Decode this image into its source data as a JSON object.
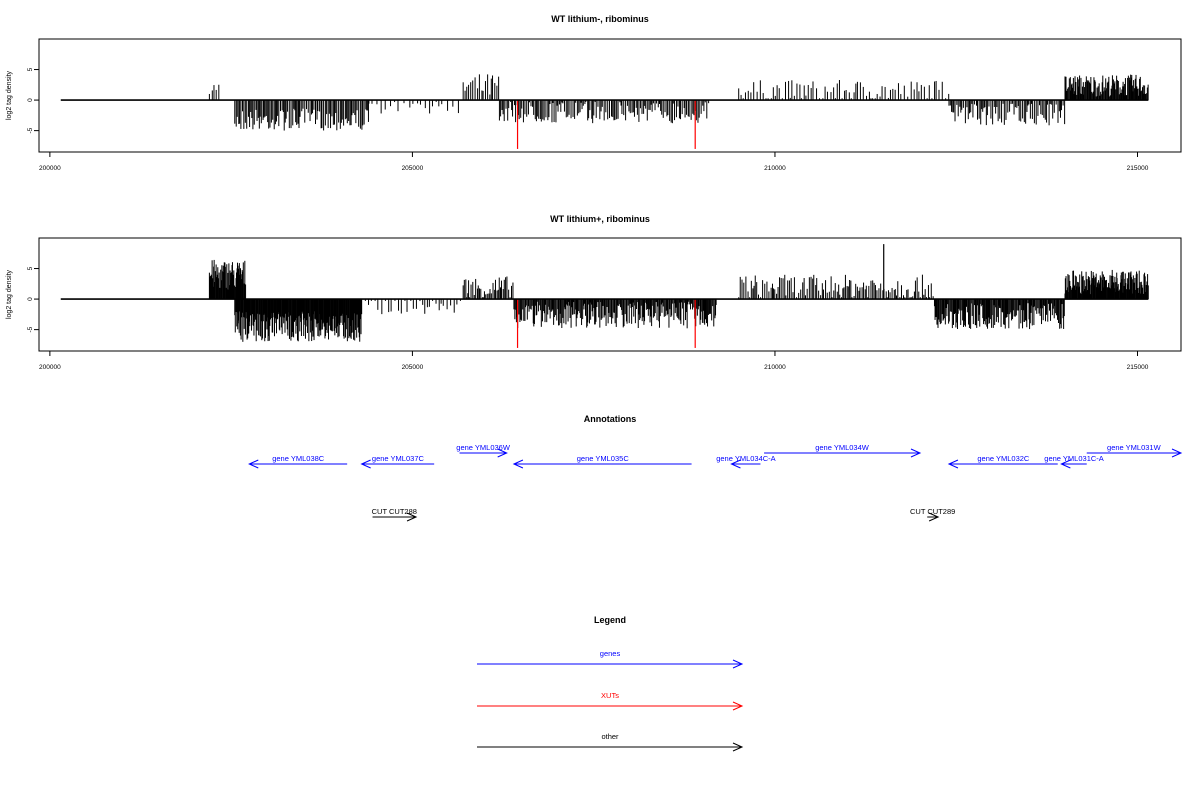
{
  "chart_data": [
    {
      "type": "bar",
      "title": "WT lithium-, ribominus",
      "ylabel": "log2 tag density",
      "xlim": [
        199850,
        215600
      ],
      "ylim": [
        -8.5,
        10
      ],
      "x_ticks": [
        200000,
        205000,
        210000,
        215000
      ],
      "y_ticks": [
        -5,
        0,
        5
      ],
      "baseline_range": [
        200150,
        215150
      ],
      "regions": [
        {
          "from": 202200,
          "to": 202350,
          "sign": 1,
          "mean": 2.0,
          "amp": 1.0,
          "step": 30
        },
        {
          "from": 202550,
          "to": 204400,
          "sign": -1,
          "mean": 3.2,
          "amp": 1.8,
          "step": 18
        },
        {
          "from": 204400,
          "to": 205700,
          "sign": -1,
          "mean": 1.2,
          "amp": 1.0,
          "step": 60
        },
        {
          "from": 205700,
          "to": 206200,
          "sign": 1,
          "mean": 2.2,
          "amp": 2.2,
          "step": 25
        },
        {
          "from": 206200,
          "to": 209100,
          "sign": -1,
          "mean": 2.0,
          "amp": 1.8,
          "step": 20
        },
        {
          "from": 209500,
          "to": 212400,
          "sign": 1,
          "mean": 1.5,
          "amp": 1.8,
          "step": 35
        },
        {
          "from": 212400,
          "to": 214000,
          "sign": -1,
          "mean": 2.4,
          "amp": 1.8,
          "step": 20
        },
        {
          "from": 214000,
          "to": 215150,
          "sign": 1,
          "mean": 2.4,
          "amp": 1.8,
          "step": 10
        }
      ],
      "highlight_bars": [
        {
          "x": 206450,
          "y": -8,
          "color": "#ff0000"
        },
        {
          "x": 208900,
          "y": -8,
          "color": "#ff0000"
        }
      ]
    },
    {
      "type": "bar",
      "title": "WT lithium+, ribominus",
      "ylabel": "log2 tag density",
      "xlim": [
        199850,
        215600
      ],
      "ylim": [
        -8.5,
        10
      ],
      "x_ticks": [
        200000,
        205000,
        210000,
        215000
      ],
      "y_ticks": [
        -5,
        0,
        5
      ],
      "baseline_range": [
        200150,
        215150
      ],
      "regions": [
        {
          "from": 202200,
          "to": 202700,
          "sign": 1,
          "mean": 4.0,
          "amp": 2.5,
          "step": 8
        },
        {
          "from": 202550,
          "to": 204300,
          "sign": -1,
          "mean": 4.5,
          "amp": 2.5,
          "step": 8
        },
        {
          "from": 204300,
          "to": 205700,
          "sign": -1,
          "mean": 1.2,
          "amp": 1.3,
          "step": 40
        },
        {
          "from": 205700,
          "to": 206400,
          "sign": 1,
          "mean": 1.8,
          "amp": 2.0,
          "step": 18
        },
        {
          "from": 206400,
          "to": 209200,
          "sign": -1,
          "mean": 2.6,
          "amp": 2.2,
          "step": 12
        },
        {
          "from": 209500,
          "to": 212200,
          "sign": 1,
          "mean": 2.0,
          "amp": 2.0,
          "step": 22
        },
        {
          "from": 212200,
          "to": 214000,
          "sign": -1,
          "mean": 2.8,
          "amp": 2.2,
          "step": 12
        },
        {
          "from": 214000,
          "to": 215150,
          "sign": 1,
          "mean": 2.8,
          "amp": 2.0,
          "step": 8
        }
      ],
      "highlight_bars": [
        {
          "x": 211500,
          "y": 9,
          "color": "#000000"
        },
        {
          "x": 206450,
          "y": -8,
          "color": "#ff0000"
        },
        {
          "x": 208900,
          "y": -8,
          "color": "#ff0000"
        }
      ]
    }
  ],
  "annotations": {
    "title": "Annotations",
    "genes_color": "#0000ff",
    "cuts_color": "#000000",
    "genes": [
      {
        "label": "gene YML038C",
        "start": 204100,
        "end": 202750,
        "row": 1
      },
      {
        "label": "gene YML037C",
        "start": 205300,
        "end": 204300,
        "row": 1
      },
      {
        "label": "gene YML036W",
        "start": 205650,
        "end": 206300,
        "row": 0
      },
      {
        "label": "gene YML035C",
        "start": 208850,
        "end": 206400,
        "row": 1
      },
      {
        "label": "gene YML034C-A",
        "start": 209800,
        "end": 209400,
        "row": 1
      },
      {
        "label": "gene YML034W",
        "start": 209850,
        "end": 212000,
        "row": 0
      },
      {
        "label": "gene YML032C",
        "start": 213900,
        "end": 212400,
        "row": 1
      },
      {
        "label": "gene YML031C-A",
        "start": 214300,
        "end": 213950,
        "row": 1
      },
      {
        "label": "gene YML031W",
        "start": 214300,
        "end": 215600,
        "row": 0
      }
    ],
    "cuts": [
      {
        "label": "CUT CUT288",
        "start": 204450,
        "end": 205050
      },
      {
        "label": "CUT CUT289",
        "start": 212100,
        "end": 212250
      }
    ]
  },
  "legend": {
    "title": "Legend",
    "items": [
      {
        "label": "genes",
        "color": "#0000ff"
      },
      {
        "label": "XUTs",
        "color": "#ff0000"
      },
      {
        "label": "other",
        "color": "#000000"
      }
    ]
  }
}
